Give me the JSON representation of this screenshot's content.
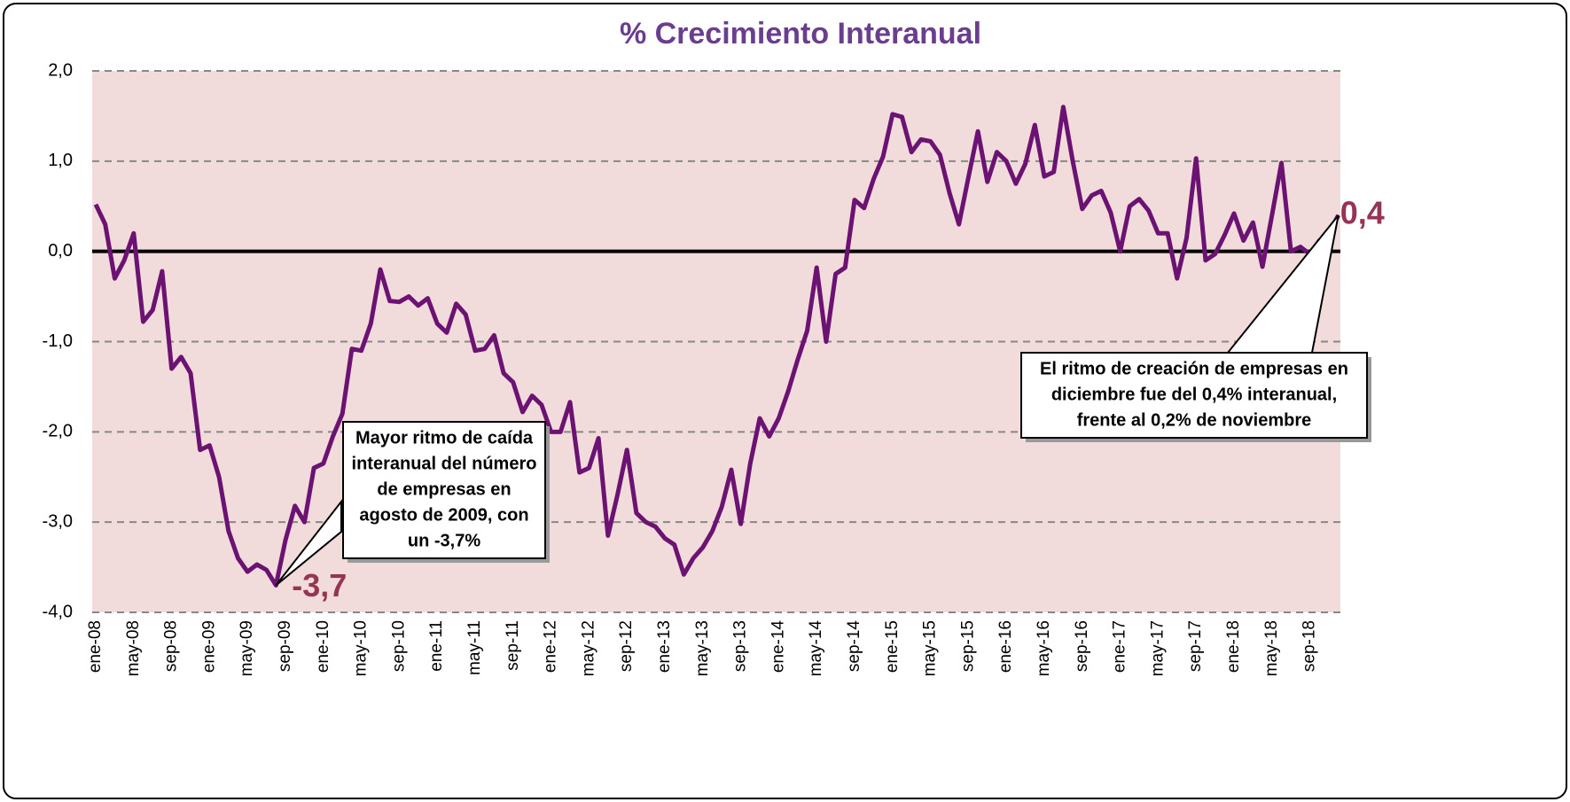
{
  "chart_data": {
    "type": "line",
    "title": "% Crecimiento Interanual",
    "categories": [
      "ene-08",
      null,
      null,
      null,
      "may-08",
      null,
      null,
      null,
      "sep-08",
      null,
      null,
      null,
      "ene-09",
      null,
      null,
      null,
      "may-09",
      null,
      null,
      null,
      "sep-09",
      null,
      null,
      null,
      "ene-10",
      null,
      null,
      null,
      "may-10",
      null,
      null,
      null,
      "sep-10",
      null,
      null,
      null,
      "ene-11",
      null,
      null,
      null,
      "may-11",
      null,
      null,
      null,
      "sep-11",
      null,
      null,
      null,
      "ene-12",
      null,
      null,
      null,
      "may-12",
      null,
      null,
      null,
      "sep-12",
      null,
      null,
      null,
      "ene-13",
      null,
      null,
      null,
      "may-13",
      null,
      null,
      null,
      "sep-13",
      null,
      null,
      null,
      "ene-14",
      null,
      null,
      null,
      "may-14",
      null,
      null,
      null,
      "sep-14",
      null,
      null,
      null,
      "ene-15",
      null,
      null,
      null,
      "may-15",
      null,
      null,
      null,
      "sep-15",
      null,
      null,
      null,
      "ene-16",
      null,
      null,
      null,
      "may-16",
      null,
      null,
      null,
      "sep-16",
      null,
      null,
      null,
      "ene-17",
      null,
      null,
      null,
      "may-17",
      null,
      null,
      null,
      "sep-17",
      null,
      null,
      null,
      "ene-18",
      null,
      null,
      null,
      "may-18",
      null,
      null,
      null,
      "sep-18",
      null,
      null,
      null
    ],
    "series": [
      {
        "color": "#6b1273",
        "values": [
          0.52,
          0.3,
          -0.3,
          -0.1,
          0.2,
          -0.78,
          -0.65,
          -0.22,
          -1.3,
          -1.17,
          -1.35,
          -2.2,
          -2.15,
          -2.5,
          -3.1,
          -3.4,
          -3.55,
          -3.47,
          -3.53,
          -3.7,
          -3.2,
          -2.82,
          -3.0,
          -2.4,
          -2.35,
          -2.05,
          -1.8,
          -1.08,
          -1.1,
          -0.8,
          -0.2,
          -0.55,
          -0.56,
          -0.5,
          -0.6,
          -0.52,
          -0.8,
          -0.9,
          -0.58,
          -0.7,
          -1.1,
          -1.08,
          -0.93,
          -1.35,
          -1.45,
          -1.78,
          -1.6,
          -1.7,
          -2.0,
          -2.0,
          -1.67,
          -2.45,
          -2.4,
          -2.07,
          -3.15,
          -2.7,
          -2.2,
          -2.9,
          -3.0,
          -3.05,
          -3.18,
          -3.25,
          -3.58,
          -3.4,
          -3.28,
          -3.1,
          -2.83,
          -2.42,
          -3.02,
          -2.35,
          -1.85,
          -2.05,
          -1.85,
          -1.55,
          -1.2,
          -0.88,
          -0.18,
          -1.0,
          -0.25,
          -0.18,
          0.57,
          0.48,
          0.8,
          1.05,
          1.52,
          1.49,
          1.1,
          1.24,
          1.22,
          1.07,
          0.65,
          0.3,
          0.82,
          1.33,
          0.77,
          1.1,
          1.0,
          0.75,
          0.97,
          1.4,
          0.83,
          0.88,
          1.6,
          1.0,
          0.47,
          0.62,
          0.67,
          0.43,
          0.0,
          0.5,
          0.58,
          0.45,
          0.2,
          0.2,
          -0.3,
          0.15,
          1.03,
          -0.1,
          -0.03,
          0.18,
          0.42,
          0.12,
          0.32,
          -0.17,
          0.4,
          0.98,
          0.0,
          0.05,
          -0.03,
          0.12,
          0.2,
          0.4
        ],
        "value_labels": [
          null,
          null,
          null,
          null,
          null,
          null,
          null,
          null,
          null,
          null,
          null,
          null,
          null,
          null,
          null,
          null,
          null,
          null,
          null,
          "-3,7",
          null,
          null,
          null,
          null,
          null,
          null,
          null,
          null,
          null,
          null,
          null,
          null,
          null,
          null,
          null,
          null,
          null,
          null,
          null,
          null,
          null,
          null,
          null,
          null,
          null,
          null,
          null,
          null,
          null,
          null,
          null,
          null,
          null,
          null,
          null,
          null,
          null,
          null,
          null,
          null,
          null,
          null,
          null,
          null,
          null,
          null,
          null,
          null,
          null,
          null,
          null,
          null,
          null,
          null,
          null,
          null,
          null,
          null,
          null,
          null,
          null,
          null,
          null,
          null,
          null,
          null,
          null,
          null,
          null,
          null,
          null,
          null,
          null,
          null,
          null,
          null,
          null,
          null,
          null,
          null,
          null,
          null,
          null,
          null,
          null,
          null,
          null,
          null,
          null,
          null,
          null,
          null,
          null,
          null,
          null,
          null,
          null,
          null,
          null,
          null,
          null,
          null,
          null,
          null,
          null,
          null,
          null,
          null,
          null,
          null,
          null,
          "0,4"
        ]
      }
    ],
    "ylim": [
      -4,
      2
    ],
    "yticks": [
      {
        "value": -4,
        "label": "-4,0"
      },
      {
        "value": -3,
        "label": "-3,0"
      },
      {
        "value": -2,
        "label": "-2,0"
      },
      {
        "value": -1,
        "label": "-1,0"
      },
      {
        "value": 0,
        "label": "0,0"
      },
      {
        "value": 1,
        "label": "1,0"
      },
      {
        "value": 2,
        "label": "2,0"
      }
    ],
    "grid": true,
    "annotations": [
      {
        "lines": [
          "Mayor ritmo de caída",
          "interanual del número",
          "de empresas en",
          "agosto de 2009, con",
          "un -3,7%"
        ]
      },
      {
        "lines": [
          "El ritmo de creación de empresas en",
          "diciembre fue del 0,4% interanual,",
          "frente al 0,2% de noviembre"
        ]
      }
    ]
  }
}
